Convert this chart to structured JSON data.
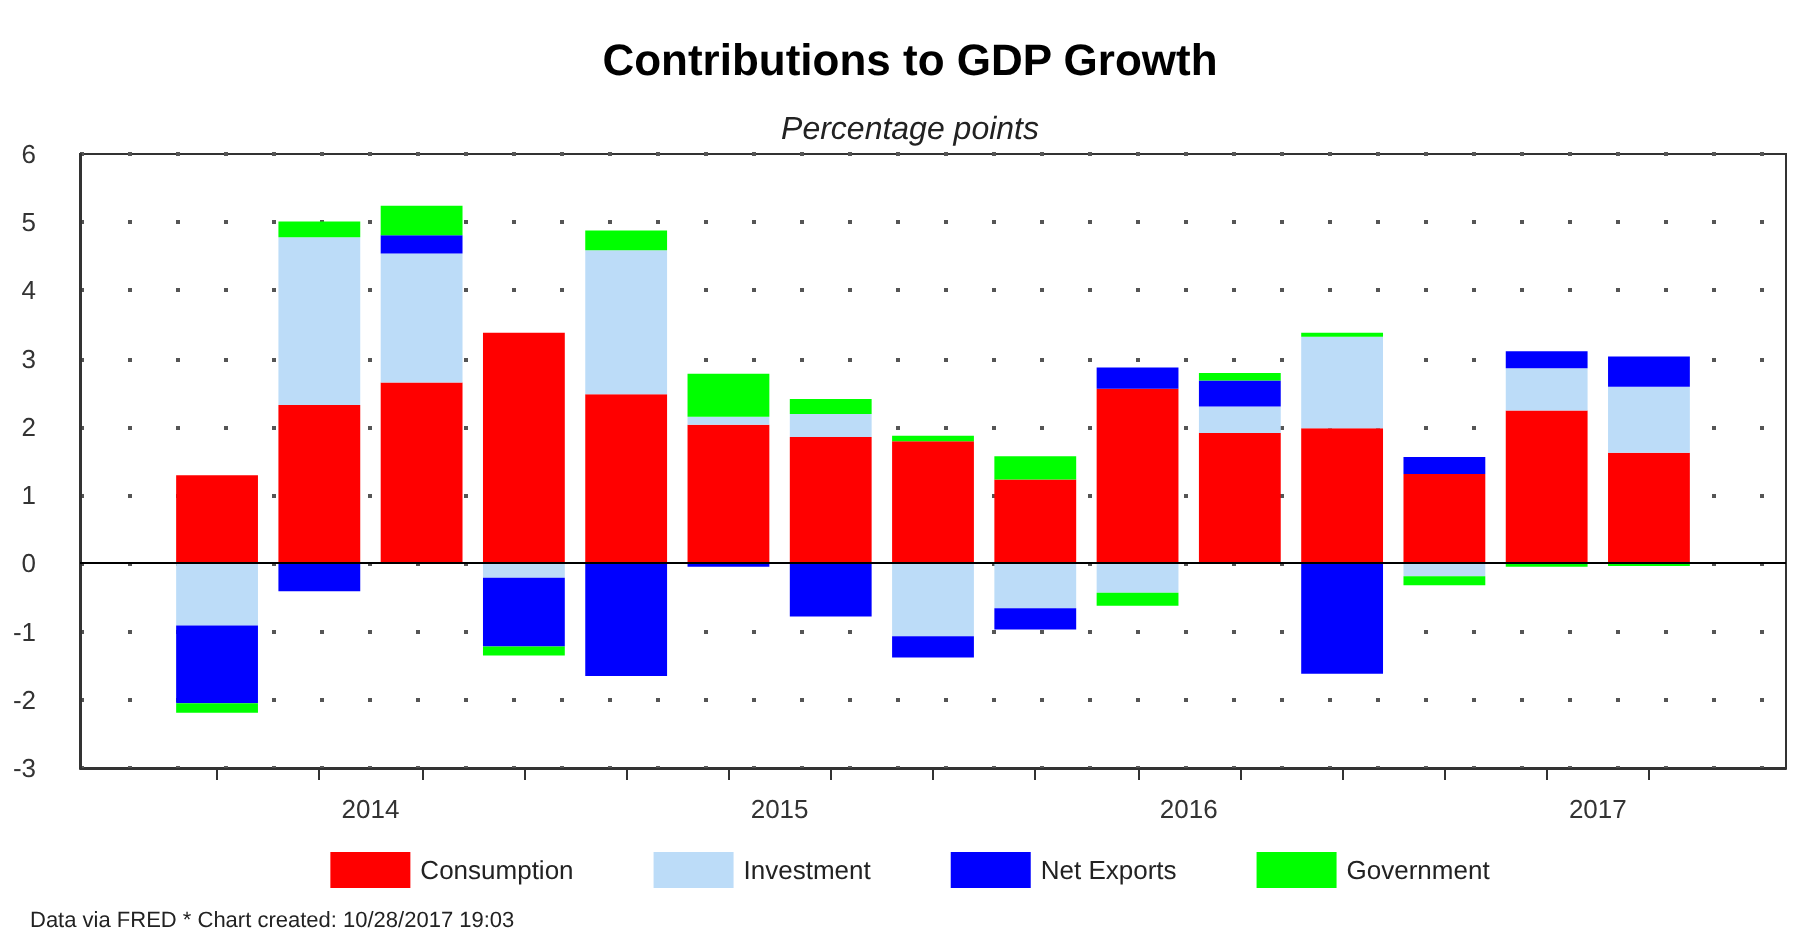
{
  "chart_data": {
    "type": "bar",
    "title": "Contributions to GDP Growth",
    "subtitle": "Percentage points",
    "annotations": [
      "Data via FRED * Chart created: 10/28/2017 19:03"
    ],
    "x": [
      2014.125,
      2014.375,
      2014.625,
      2014.875,
      2015.125,
      2015.375,
      2015.625,
      2015.875,
      2016.125,
      2016.375,
      2016.625,
      2016.875,
      2017.125,
      2017.375,
      2017.625
    ],
    "stacked": true,
    "series": [
      {
        "name": "Consumption",
        "color": "#ff0000",
        "values": [
          1.29,
          2.32,
          2.65,
          3.38,
          2.48,
          2.03,
          1.85,
          1.79,
          1.23,
          2.56,
          1.91,
          1.98,
          1.31,
          2.24,
          1.62
        ]
      },
      {
        "name": "Investment",
        "color": "#bcdcf8",
        "values": [
          -0.91,
          2.46,
          1.89,
          -0.21,
          2.11,
          0.12,
          0.34,
          -1.07,
          -0.66,
          -0.43,
          0.39,
          1.34,
          -0.19,
          0.62,
          0.97
        ]
      },
      {
        "name": "Net Exports",
        "color": "#0000ff",
        "values": [
          -1.14,
          -0.41,
          0.27,
          -1.01,
          -1.65,
          -0.05,
          -0.78,
          -0.31,
          -0.31,
          0.31,
          0.38,
          -1.62,
          0.25,
          0.25,
          0.44
        ]
      },
      {
        "name": "Government",
        "color": "#00ff00",
        "values": [
          -0.14,
          0.23,
          0.43,
          -0.13,
          0.29,
          0.63,
          0.22,
          0.08,
          0.34,
          -0.19,
          0.11,
          0.06,
          -0.13,
          -0.05,
          -0.04
        ]
      }
    ],
    "xlim": [
      2013.79,
      2017.96
    ],
    "xticks": [
      {
        "value": 2014.125,
        "label": null
      },
      {
        "value": 2014.375,
        "label": null
      },
      {
        "value": 2014.625,
        "label": null
      },
      {
        "value": 2014.875,
        "label": null
      },
      {
        "value": 2015.125,
        "label": null
      },
      {
        "value": 2015.375,
        "label": null
      },
      {
        "value": 2015.625,
        "label": null
      },
      {
        "value": 2015.875,
        "label": null
      },
      {
        "value": 2016.125,
        "label": null
      },
      {
        "value": 2016.375,
        "label": null
      },
      {
        "value": 2016.625,
        "label": null
      },
      {
        "value": 2016.875,
        "label": null
      },
      {
        "value": 2017.125,
        "label": null
      },
      {
        "value": 2017.375,
        "label": null
      },
      {
        "value": 2017.625,
        "label": null
      },
      {
        "value": 2014.5,
        "label": "2014"
      },
      {
        "value": 2015.5,
        "label": "2015"
      },
      {
        "value": 2016.5,
        "label": "2016"
      },
      {
        "value": 2017.5,
        "label": "2017"
      }
    ],
    "ylim": [
      -3,
      6
    ],
    "yticks": [
      -3,
      -2,
      -1,
      0,
      1,
      2,
      3,
      4,
      5,
      6
    ],
    "ref_lines": [
      {
        "axis": "y",
        "value": 0,
        "color": "#000000",
        "line_style": "solid"
      }
    ],
    "grid": "y",
    "legend": "bottom"
  }
}
